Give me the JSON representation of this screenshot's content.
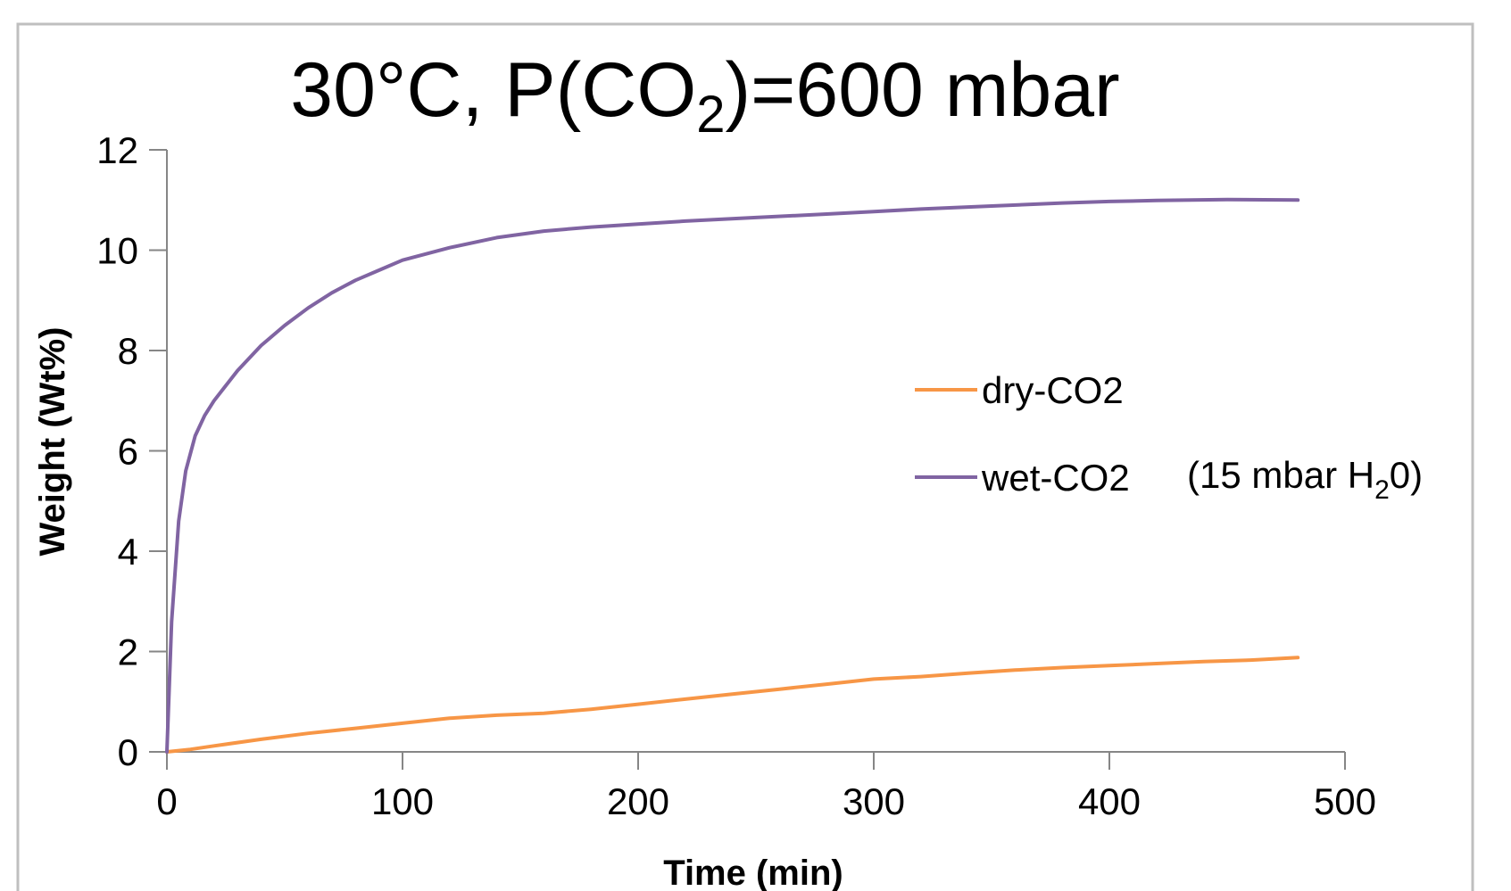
{
  "chart_data": {
    "type": "line",
    "title": {
      "main": "30°C, P(CO",
      "sub": "2",
      "tail": ")=600 mbar"
    },
    "xlabel": "Time (min)",
    "ylabel": "Weight (Wt%)",
    "xlim": [
      0,
      500
    ],
    "ylim": [
      0,
      12
    ],
    "xticks": [
      0,
      100,
      200,
      300,
      400,
      500
    ],
    "yticks": [
      0,
      2,
      4,
      6,
      8,
      10,
      12
    ],
    "grid": false,
    "legend_position": "right",
    "legend_note": {
      "text": "(15 mbar H",
      "sub": "2",
      "tail": "0)"
    },
    "series": [
      {
        "name": "dry-CO2",
        "color": "#F79646",
        "x": [
          0,
          10,
          20,
          40,
          60,
          80,
          100,
          120,
          140,
          160,
          180,
          200,
          220,
          240,
          260,
          280,
          300,
          320,
          340,
          360,
          380,
          400,
          420,
          440,
          460,
          480
        ],
        "y": [
          0,
          0.05,
          0.12,
          0.25,
          0.37,
          0.47,
          0.57,
          0.67,
          0.73,
          0.77,
          0.85,
          0.95,
          1.05,
          1.15,
          1.25,
          1.35,
          1.45,
          1.5,
          1.57,
          1.63,
          1.68,
          1.72,
          1.76,
          1.8,
          1.83,
          1.88
        ]
      },
      {
        "name": "wet-CO2",
        "color": "#8064A2",
        "x": [
          0,
          2,
          5,
          8,
          12,
          16,
          20,
          25,
          30,
          40,
          50,
          60,
          70,
          80,
          90,
          100,
          120,
          140,
          160,
          180,
          200,
          220,
          250,
          280,
          300,
          320,
          350,
          380,
          400,
          420,
          450,
          480
        ],
        "y": [
          0,
          2.6,
          4.6,
          5.6,
          6.3,
          6.7,
          7.0,
          7.3,
          7.6,
          8.1,
          8.5,
          8.85,
          9.15,
          9.4,
          9.6,
          9.8,
          10.05,
          10.25,
          10.38,
          10.46,
          10.52,
          10.58,
          10.65,
          10.72,
          10.77,
          10.82,
          10.88,
          10.94,
          10.97,
          10.99,
          11.01,
          11.0
        ]
      }
    ]
  }
}
